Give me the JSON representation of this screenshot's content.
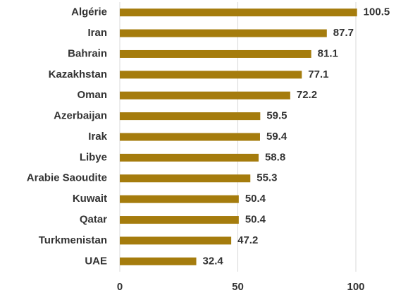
{
  "chart_data": {
    "type": "bar",
    "categories": [
      "Algérie",
      "Iran",
      "Bahrain",
      "Kazakhstan",
      "Oman",
      "Azerbaijan",
      "Irak",
      "Libye",
      "Arabie Saoudite",
      "Kuwait",
      "Qatar",
      "Turkmenistan",
      "UAE"
    ],
    "values": [
      100.5,
      87.7,
      81.1,
      77.1,
      72.2,
      59.5,
      59.4,
      58.8,
      55.3,
      50.4,
      50.4,
      47.2,
      32.4
    ],
    "color": "#a57c0d",
    "xlim": [
      0,
      120
    ],
    "xticks": [
      0,
      50,
      100
    ],
    "grid": true
  }
}
